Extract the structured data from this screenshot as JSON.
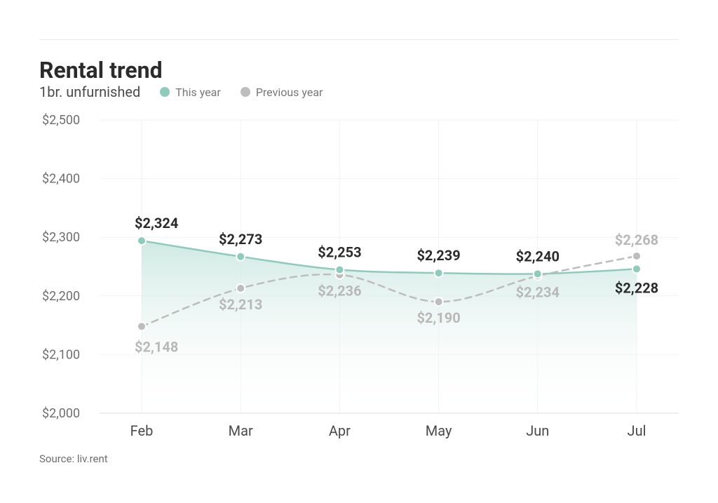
{
  "title": "Rental trend",
  "subtitle": "1br. unfurnished",
  "legend": {
    "this_year": "This year",
    "prev_year": "Previous year"
  },
  "source": "Source: liv.rent",
  "chart": {
    "type": "line",
    "background_color": "#ffffff",
    "grid_color": "#f2f2f2",
    "axis_color": "#dddddd",
    "y_label_color": "#6e6e6e",
    "x_label_color": "#4a4a4a",
    "categories": [
      "Feb",
      "Mar",
      "Apr",
      "May",
      "Jun",
      "Jul"
    ],
    "ylim": [
      2000,
      2500
    ],
    "ytick_step": 100,
    "y_ticks": [
      "$2,000",
      "$2,100",
      "$2,200",
      "$2,300",
      "$2,400",
      "$2,500"
    ],
    "series": {
      "this_year": {
        "color": "#8fcbbd",
        "fill_gradient_top": "#c7e5de",
        "fill_gradient_bottom": "#ffffff",
        "marker_fill": "#8fcbbd",
        "marker_stroke": "#ffffff",
        "marker_radius": 6,
        "line_width": 2.5,
        "dash": "none",
        "values": [
          2324,
          2273,
          2253,
          2239,
          2240,
          2228
        ],
        "labels": [
          "$2,324",
          "$2,273",
          "$2,253",
          "$2,239",
          "$2,240",
          "$2,228"
        ],
        "label_color": "#2b2b2b",
        "label_fontsize": 20,
        "label_fontweight": 700,
        "marker_y_offsets": [
          25,
          5,
          7,
          0,
          2,
          -15
        ],
        "label_positions": [
          "above",
          "above",
          "above",
          "above",
          "above",
          "below"
        ]
      },
      "prev_year": {
        "color": "#bdbdbd",
        "marker_fill": "#bdbdbd",
        "marker_stroke": "#ffffff",
        "marker_radius": 6,
        "line_width": 2.5,
        "dash": "9 7",
        "values": [
          2148,
          2213,
          2236,
          2190,
          2234,
          2268
        ],
        "labels": [
          "$2,148",
          "$2,213",
          "$2,236",
          "$2,190",
          "$2,234",
          "$2,268"
        ],
        "label_color": "#b8b8b8",
        "label_fontsize": 20,
        "label_fontweight": 700,
        "label_positions": [
          "below",
          "below",
          "below",
          "below",
          "below",
          "above"
        ]
      }
    },
    "legend_dot_this": "#8fcbbd",
    "legend_dot_prev": "#bdbdbd"
  }
}
